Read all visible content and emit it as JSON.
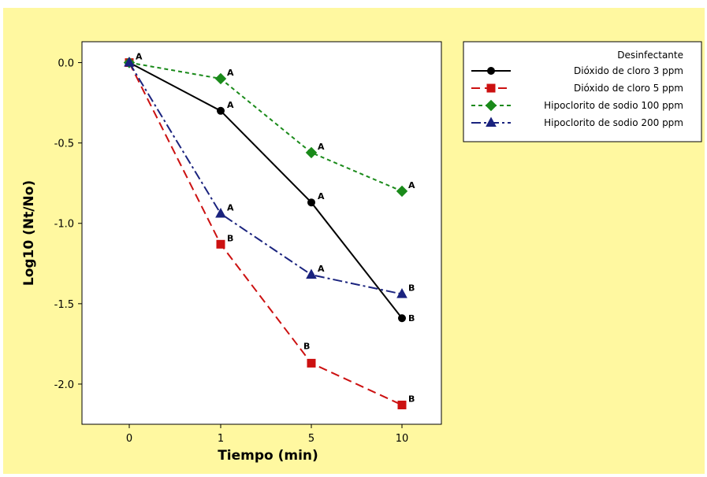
{
  "chart_data": {
    "type": "line",
    "title": "",
    "xlabel": "Tiempo (min)",
    "ylabel": "Log10 (Nt/No)",
    "categories": [
      "0",
      "1",
      "5",
      "10"
    ],
    "ylim": [
      -2.25,
      0.13
    ],
    "yticks": [
      0.0,
      -0.5,
      -1.0,
      -1.5,
      -2.0
    ],
    "ytick_labels": [
      "0.0",
      "-0.5",
      "-1.0",
      "-1.5",
      "-2.0"
    ],
    "grid": false,
    "legend": {
      "title": "Desinfectante",
      "placement": "right"
    },
    "series": [
      {
        "name": "Dióxido de cloro 3 ppm",
        "color": "#000000",
        "dash": "solid",
        "marker": "circle",
        "values": [
          0.0,
          -0.3,
          -0.87,
          -1.59
        ],
        "labels": [
          "A",
          "A",
          "A",
          "B"
        ]
      },
      {
        "name": "Dióxido de cloro 5 ppm",
        "color": "#cc1111",
        "dash": "long-dash",
        "marker": "square",
        "values": [
          0.0,
          -1.13,
          -1.87,
          -2.13
        ],
        "labels": [
          "",
          "B",
          "B",
          "B"
        ]
      },
      {
        "name": "Hipoclorito de sodio 100 ppm",
        "color": "#1a8a1a",
        "dash": "short-dash",
        "marker": "diamond",
        "values": [
          0.0,
          -0.1,
          -0.56,
          -0.8
        ],
        "labels": [
          "",
          "A",
          "A",
          "A"
        ]
      },
      {
        "name": "Hipoclorito de sodio 200 ppm",
        "color": "#1a237e",
        "dash": "dash-dot",
        "marker": "triangle",
        "values": [
          0.0,
          -0.94,
          -1.32,
          -1.44
        ],
        "labels": [
          "",
          "A",
          "A",
          "B"
        ]
      }
    ]
  }
}
